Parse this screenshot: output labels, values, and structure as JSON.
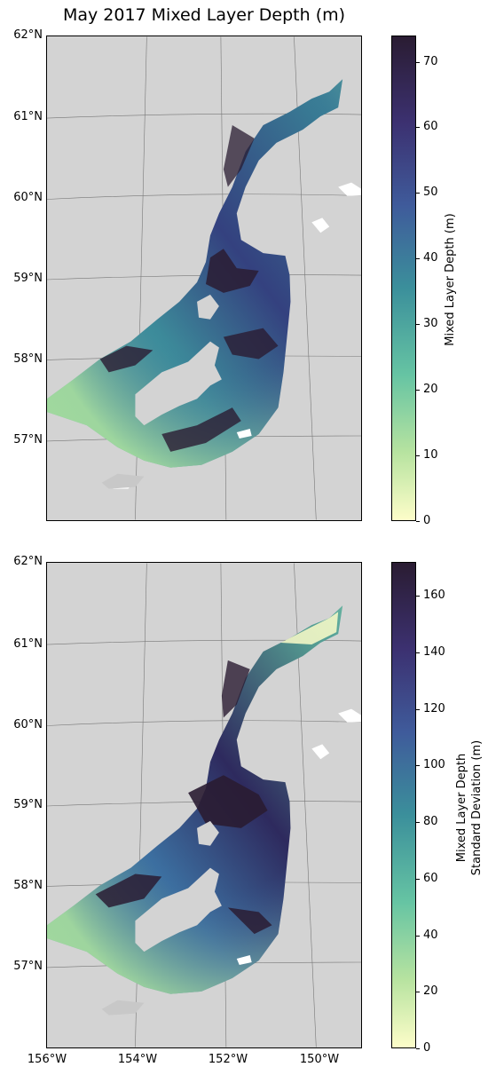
{
  "title": "May 2017 Mixed Layer Depth (m)",
  "colors": {
    "land": "#d3d3d3",
    "cmap": [
      "#fdfdc9",
      "#b7e3a0",
      "#66c4a3",
      "#3b8f9b",
      "#3f5b9b",
      "#3c3171",
      "#2a1c32"
    ]
  },
  "lat_labels": [
    "62°N",
    "61°N",
    "60°N",
    "59°N",
    "58°N",
    "57°N"
  ],
  "lon_labels": [
    "156°W",
    "154°W",
    "152°W",
    "150°W"
  ],
  "panels": [
    {
      "colorbar_label": "Mixed Layer Depth (m)",
      "colorbar_label_line2": "",
      "cbar_ticks": [
        "0",
        "10",
        "20",
        "30",
        "40",
        "50",
        "60",
        "70"
      ],
      "cbar_range": [
        0,
        74
      ]
    },
    {
      "colorbar_label": "Mixed Layer Depth",
      "colorbar_label_line2": "Standard Deviation (m)",
      "cbar_ticks": [
        "0",
        "20",
        "40",
        "60",
        "80",
        "100",
        "120",
        "140",
        "160"
      ],
      "cbar_range": [
        0,
        172
      ]
    }
  ]
}
